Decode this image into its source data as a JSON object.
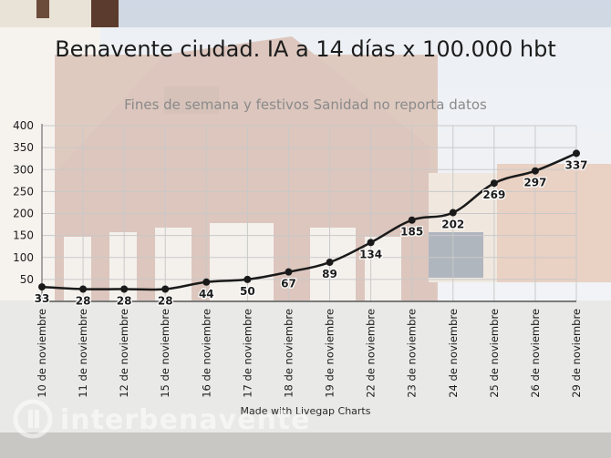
{
  "title": "Benavente ciudad. IA a 14 días x 100.000 hbt",
  "subtitle": "Fines de semana y festivos Sanidad no reporta datos",
  "credit": "Made with Livegap Charts",
  "watermark": "interbenavente",
  "colors": {
    "line": "#1a1a1a",
    "grid": "#c9c9c9",
    "text": "#1c1c1c"
  },
  "chart_data": {
    "type": "line",
    "categories": [
      "10 de noviembre",
      "11 de noviembre",
      "12 de noviembre",
      "15 de noviembre",
      "16 de noviembre",
      "17 de noviembre",
      "18 de noviembre",
      "19 de noviembre",
      "22 de noviembre",
      "23 de noviembre",
      "24 de noviembre",
      "25 de noviembre",
      "26 de noviembre",
      "29 de noviembre"
    ],
    "values": [
      33,
      28,
      28,
      28,
      44,
      50,
      67,
      89,
      134,
      185,
      202,
      269,
      297,
      337
    ],
    "yticks": [
      50,
      100,
      150,
      200,
      250,
      300,
      350,
      400
    ],
    "ylim": [
      0,
      400
    ],
    "grid": true
  }
}
